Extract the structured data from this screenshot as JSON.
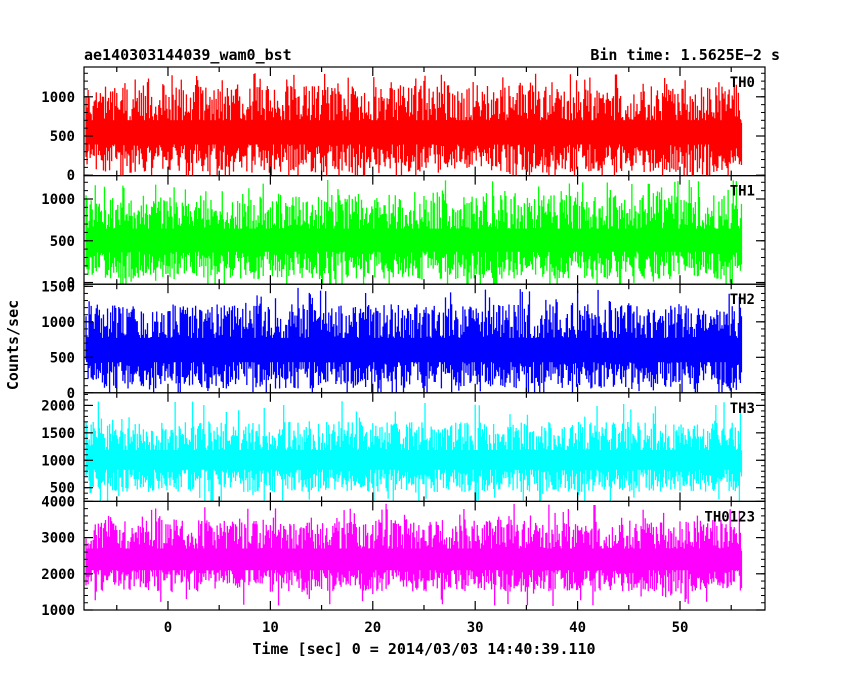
{
  "header": {
    "title": "ae140303144039_wam0_bst",
    "bin_time": "Bin time: 1.5625E−2 s"
  },
  "chart_data": {
    "type": "line",
    "xlabel": "Time [sec] 0 = 2014/03/03 14:40:39.110",
    "ylabel": "Counts/sec",
    "xlim": [
      -8.2,
      58.3
    ],
    "xticks": [
      "0",
      "10",
      "20",
      "30",
      "40",
      "50"
    ],
    "xtick_values": [
      0,
      10,
      20,
      30,
      40,
      50
    ],
    "data_range": [
      -8.0,
      56.0
    ],
    "grid": false,
    "panels": [
      {
        "name": "TH0",
        "color": "#ff0000",
        "ylim": [
          -5,
          1380
        ],
        "yticks": [
          0,
          500,
          1000
        ],
        "ytick_labels": [
          "0",
          "500",
          "1000"
        ],
        "typical_range": [
          30,
          1150
        ],
        "median": 560,
        "peak": 1300
      },
      {
        "name": "TH1",
        "color": "#00ff00",
        "ylim": [
          -20,
          1280
        ],
        "yticks": [
          0,
          500,
          1000
        ],
        "ytick_labels": [
          "0",
          "500",
          "1000"
        ],
        "typical_range": [
          40,
          1050
        ],
        "median": 520,
        "peak": 1230
      },
      {
        "name": "TH2",
        "color": "#0000ff",
        "ylim": [
          0,
          1530
        ],
        "yticks": [
          0,
          500,
          1000,
          1500
        ],
        "ytick_labels": [
          "0",
          "500",
          "1000",
          "1500"
        ],
        "typical_range": [
          60,
          1250
        ],
        "median": 610,
        "peak": 1480
      },
      {
        "name": "TH3",
        "color": "#00ffff",
        "ylim": [
          250,
          2230
        ],
        "yticks": [
          500,
          1000,
          1500,
          2000
        ],
        "ytick_labels": [
          "500",
          "1000",
          "1500",
          "2000"
        ],
        "typical_range": [
          420,
          1700
        ],
        "median": 1020,
        "peak": 2080
      },
      {
        "name": "TH0123",
        "color": "#ff00ff",
        "ylim": [
          1000,
          4000
        ],
        "yticks": [
          1000,
          2000,
          3000,
          4000
        ],
        "ytick_labels": [
          "1000",
          "2000",
          "3000",
          "4000"
        ],
        "typical_range": [
          1500,
          3500
        ],
        "median": 2400,
        "peak": 3950
      }
    ]
  }
}
